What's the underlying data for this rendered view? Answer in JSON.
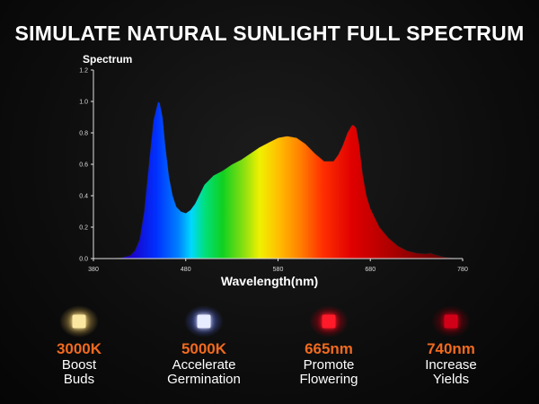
{
  "header": {
    "title": "SIMULATE NATURAL SUNLIGHT FULL SPECTRUM"
  },
  "chart_data": {
    "type": "area",
    "ylabel": "Spectrum",
    "xlabel": "Wavelength(nm)",
    "xlim": [
      380,
      780
    ],
    "ylim": [
      0,
      1.2
    ],
    "x_ticks": [
      "380",
      "480",
      "580",
      "680",
      "780"
    ],
    "y_ticks": [
      "0.0",
      "0.2",
      "0.4",
      "0.6",
      "0.8",
      "1.0",
      "1.2"
    ],
    "grid": false,
    "series": [
      {
        "x": [
          380,
          400,
          410,
          420,
          425,
          430,
          435,
          440,
          445,
          450,
          452,
          455,
          458,
          462,
          466,
          470,
          475,
          480,
          485,
          490,
          495,
          500,
          510,
          520,
          530,
          540,
          550,
          560,
          570,
          580,
          590,
          600,
          610,
          620,
          630,
          640,
          645,
          650,
          655,
          660,
          662,
          665,
          668,
          672,
          676,
          680,
          690,
          700,
          710,
          720,
          730,
          740,
          745,
          750,
          760,
          770,
          780
        ],
        "y": [
          0,
          0,
          0.005,
          0.02,
          0.05,
          0.12,
          0.3,
          0.6,
          0.88,
          1.0,
          0.99,
          0.9,
          0.72,
          0.52,
          0.4,
          0.33,
          0.3,
          0.29,
          0.31,
          0.35,
          0.41,
          0.47,
          0.53,
          0.56,
          0.6,
          0.63,
          0.67,
          0.71,
          0.74,
          0.77,
          0.78,
          0.77,
          0.73,
          0.67,
          0.62,
          0.62,
          0.66,
          0.72,
          0.8,
          0.85,
          0.85,
          0.83,
          0.73,
          0.53,
          0.4,
          0.32,
          0.2,
          0.13,
          0.08,
          0.05,
          0.035,
          0.03,
          0.035,
          0.025,
          0.01,
          0.002,
          0
        ]
      }
    ]
  },
  "chips": [
    {
      "spec": "3000K",
      "line1": "Boost",
      "line2": "Buds",
      "die_color": "#fbe7a0",
      "glow_color": "#c9a24a"
    },
    {
      "spec": "5000K",
      "line1": "Accelerate",
      "line2": "Germination",
      "die_color": "#e8ecff",
      "glow_color": "#4a5cc9"
    },
    {
      "spec": "665nm",
      "line1": "Promote",
      "line2": "Flowering",
      "die_color": "#ff1a2a",
      "glow_color": "#b3000f"
    },
    {
      "spec": "740nm",
      "line1": "Increase",
      "line2": "Yields",
      "die_color": "#d10018",
      "glow_color": "#80000c"
    }
  ]
}
